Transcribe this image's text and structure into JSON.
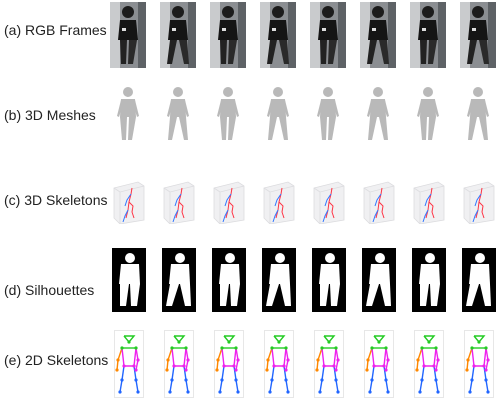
{
  "rows": [
    {
      "key": "rgb",
      "label": "(a) RGB Frames"
    },
    {
      "key": "mesh",
      "label": "(b) 3D Meshes"
    },
    {
      "key": "skel3d",
      "label": "(c) 3D Skeletons"
    },
    {
      "key": "sil",
      "label": "(d) Silhouettes"
    },
    {
      "key": "skel2d",
      "label": "(e) 2D Skeletons"
    }
  ],
  "frame_count": 8,
  "colors": {
    "mesh": "#b9b9b9",
    "skel_head": "#22cc22",
    "skel_arm_left": "#ff8800",
    "skel_arm_right": "#ee22ee",
    "skel_leg": "#2266ff",
    "skel3d_red": "#ff3344",
    "skel3d_blue": "#3377ff",
    "silhouette_bg": "#000000",
    "silhouette_fg": "#ffffff"
  }
}
